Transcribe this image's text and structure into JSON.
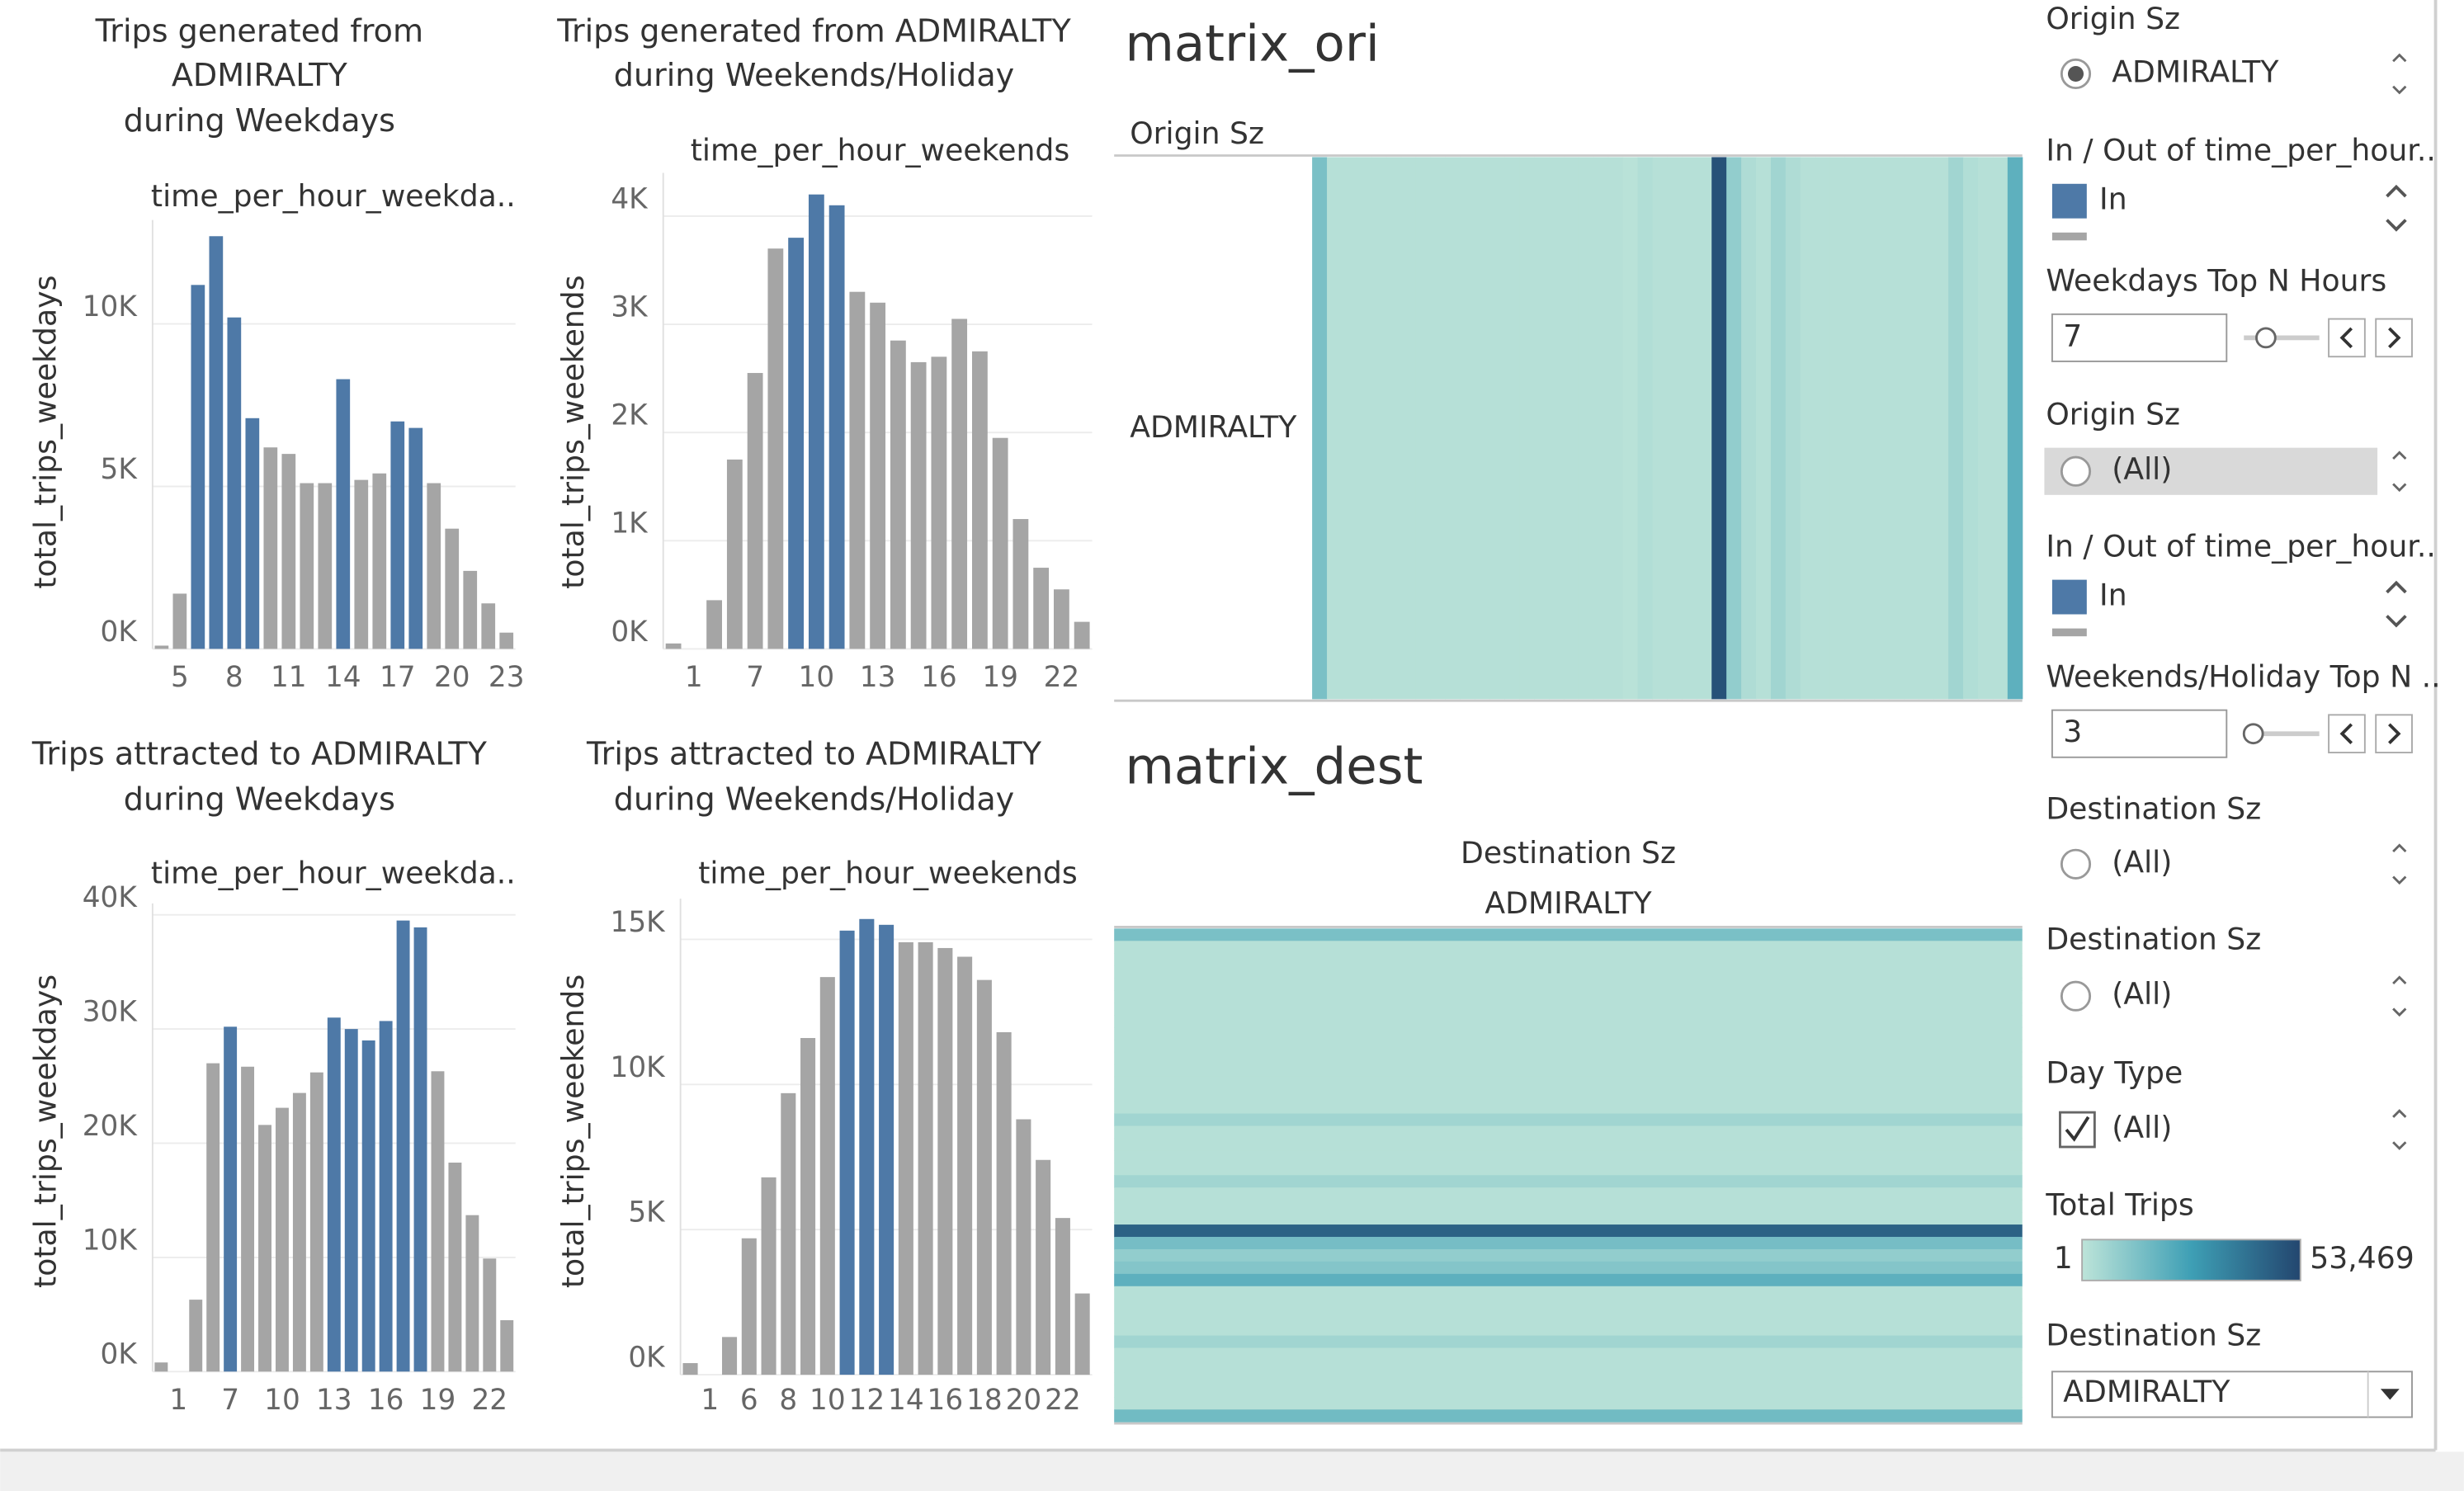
{
  "chart_data": [
    {
      "type": "bar",
      "title": [
        "Trips generated from",
        "ADMIRALTY",
        "during Weekdays"
      ],
      "subtitle": "time_per_hour_weekda..",
      "y_label": "total_trips_weekdays",
      "categories": [
        null,
        "5",
        null,
        null,
        "8",
        null,
        null,
        "11",
        null,
        null,
        "14",
        null,
        null,
        "17",
        null,
        null,
        "20",
        null,
        null,
        "23"
      ],
      "values": [
        100,
        1700,
        11200,
        12700,
        10200,
        7100,
        6200,
        6000,
        5100,
        5100,
        8300,
        5200,
        5400,
        7000,
        6800,
        5100,
        3700,
        2400,
        1400,
        500
      ],
      "colors": [
        "#a5a5a5",
        "#a5a5a5",
        "#4e79a7",
        "#4e79a7",
        "#4e79a7",
        "#4e79a7",
        "#a5a5a5",
        "#a5a5a5",
        "#a5a5a5",
        "#a5a5a5",
        "#4e79a7",
        "#a5a5a5",
        "#a5a5a5",
        "#4e79a7",
        "#4e79a7",
        "#a5a5a5",
        "#a5a5a5",
        "#a5a5a5",
        "#a5a5a5",
        "#a5a5a5"
      ],
      "ylim": [
        0,
        13200
      ],
      "yticks": [
        {
          "value": 0,
          "label": "0K"
        },
        {
          "value": 5000,
          "label": "5K"
        },
        {
          "value": 10000,
          "label": "10K"
        }
      ],
      "grid": true
    },
    {
      "type": "bar",
      "title": [
        "Trips generated from ADMIRALTY",
        "during Weekends/Holiday"
      ],
      "subtitle": "time_per_hour_weekends",
      "y_label": "total_trips_weekends",
      "categories": [
        null,
        "1",
        null,
        null,
        "7",
        null,
        null,
        "10",
        null,
        null,
        "13",
        null,
        null,
        "16",
        null,
        null,
        "19",
        null,
        null,
        "22",
        null
      ],
      "values": [
        50,
        0,
        450,
        1750,
        2550,
        3700,
        3800,
        4200,
        4100,
        3300,
        3200,
        2850,
        2650,
        2700,
        3050,
        2750,
        1950,
        1200,
        750,
        550,
        250
      ],
      "colors": [
        "#a5a5a5",
        "#a5a5a5",
        "#a5a5a5",
        "#a5a5a5",
        "#a5a5a5",
        "#a5a5a5",
        "#4e79a7",
        "#4e79a7",
        "#4e79a7",
        "#a5a5a5",
        "#a5a5a5",
        "#a5a5a5",
        "#a5a5a5",
        "#a5a5a5",
        "#a5a5a5",
        "#a5a5a5",
        "#a5a5a5",
        "#a5a5a5",
        "#a5a5a5",
        "#a5a5a5",
        "#a5a5a5"
      ],
      "ylim": [
        0,
        4400
      ],
      "yticks": [
        {
          "value": 0,
          "label": "0K"
        },
        {
          "value": 1000,
          "label": "1K"
        },
        {
          "value": 2000,
          "label": "2K"
        },
        {
          "value": 3000,
          "label": "3K"
        },
        {
          "value": 4000,
          "label": "4K"
        }
      ],
      "grid": true
    },
    {
      "type": "bar",
      "title": [
        "Trips attracted to ADMIRALTY",
        "during Weekdays"
      ],
      "subtitle": "time_per_hour_weekda..",
      "y_label": "total_trips_weekdays",
      "categories": [
        null,
        "1",
        null,
        null,
        "7",
        null,
        null,
        "10",
        null,
        null,
        "13",
        null,
        null,
        "16",
        null,
        null,
        "19",
        null,
        null,
        "22",
        null
      ],
      "values": [
        800,
        0,
        6300,
        27000,
        30200,
        26700,
        21600,
        23100,
        24400,
        26200,
        31000,
        30000,
        29000,
        30700,
        39500,
        38900,
        26300,
        18300,
        13700,
        9900,
        4500
      ],
      "colors": [
        "#a5a5a5",
        "#a5a5a5",
        "#a5a5a5",
        "#a5a5a5",
        "#4e79a7",
        "#a5a5a5",
        "#a5a5a5",
        "#a5a5a5",
        "#a5a5a5",
        "#a5a5a5",
        "#4e79a7",
        "#4e79a7",
        "#4e79a7",
        "#4e79a7",
        "#4e79a7",
        "#4e79a7",
        "#a5a5a5",
        "#a5a5a5",
        "#a5a5a5",
        "#a5a5a5",
        "#a5a5a5"
      ],
      "ylim": [
        0,
        41000
      ],
      "yticks": [
        {
          "value": 0,
          "label": "0K"
        },
        {
          "value": 10000,
          "label": "10K"
        },
        {
          "value": 20000,
          "label": "20K"
        },
        {
          "value": 30000,
          "label": "30K"
        },
        {
          "value": 40000,
          "label": "40K"
        }
      ],
      "grid": true
    },
    {
      "type": "bar",
      "title": [
        "Trips attracted to ADMIRALTY",
        "during Weekends/Holiday"
      ],
      "subtitle": "time_per_hour_weekends",
      "y_label": "total_trips_weekends",
      "categories": [
        null,
        "1",
        null,
        "6",
        null,
        "8",
        null,
        "10",
        null,
        "12",
        null,
        "14",
        null,
        "16",
        null,
        "18",
        null,
        "20",
        null,
        "22",
        null
      ],
      "values": [
        400,
        0,
        1300,
        4700,
        6800,
        9700,
        11600,
        13700,
        15300,
        15700,
        15500,
        14900,
        14900,
        14700,
        14400,
        13600,
        11800,
        8800,
        7400,
        5400,
        2800
      ],
      "colors": [
        "#a5a5a5",
        "#a5a5a5",
        "#a5a5a5",
        "#a5a5a5",
        "#a5a5a5",
        "#a5a5a5",
        "#a5a5a5",
        "#a5a5a5",
        "#4e79a7",
        "#4e79a7",
        "#4e79a7",
        "#a5a5a5",
        "#a5a5a5",
        "#a5a5a5",
        "#a5a5a5",
        "#a5a5a5",
        "#a5a5a5",
        "#a5a5a5",
        "#a5a5a5",
        "#a5a5a5",
        "#a5a5a5"
      ],
      "ylim": [
        0,
        16400
      ],
      "yticks": [
        {
          "value": 0,
          "label": "0K"
        },
        {
          "value": 5000,
          "label": "5K"
        },
        {
          "value": 10000,
          "label": "10K"
        },
        {
          "value": 15000,
          "label": "15K"
        }
      ],
      "grid": true
    },
    {
      "type": "heatmap",
      "title": "matrix_ori",
      "header": "Origin Sz",
      "label": "ADMIRALTY",
      "orientation": "columns",
      "values": [
        14000,
        1500,
        1500,
        1500,
        1500,
        1500,
        1500,
        1500,
        1500,
        1500,
        1500,
        1500,
        1500,
        1500,
        1500,
        1500,
        1500,
        1500,
        1500,
        1500,
        1500,
        800,
        2500,
        1500,
        1500,
        1500,
        1500,
        50000,
        9000,
        3000,
        1500,
        6000,
        3000,
        1500,
        1500,
        1500,
        1500,
        1500,
        1500,
        1500,
        1500,
        1500,
        1500,
        6000,
        2500,
        1500,
        1500,
        20000
      ]
    },
    {
      "type": "heatmap",
      "title": "matrix_dest",
      "header": "Destination Sz",
      "label": "ADMIRALTY",
      "orientation": "rows",
      "values": [
        14000,
        1500,
        1500,
        1500,
        1500,
        1500,
        1500,
        1500,
        1500,
        1500,
        1500,
        1500,
        1500,
        1500,
        1500,
        6000,
        1500,
        1500,
        1500,
        1500,
        6000,
        1500,
        1500,
        1500,
        45000,
        15000,
        9000,
        12000,
        20000,
        1500,
        1500,
        1500,
        1500,
        6000,
        1500,
        1500,
        1500,
        1500,
        1500,
        16000
      ]
    }
  ],
  "controls": [
    {
      "kind": "radio",
      "title": "Origin Sz",
      "option": "ADMIRALTY",
      "selected": true
    },
    {
      "kind": "legend",
      "title": "In / Out of time_per_hour..",
      "item": "In",
      "color": "#4e79a7"
    },
    {
      "kind": "topn",
      "title": "Weekdays Top N Hours",
      "value": "7"
    },
    {
      "kind": "radio",
      "title": "Origin Sz",
      "option": "(All)",
      "selected": false,
      "highlighted": true
    },
    {
      "kind": "legend",
      "title": "In / Out of time_per_hour..",
      "item": "In",
      "color": "#4e79a7"
    },
    {
      "kind": "topn",
      "title": "Weekends/Holiday Top N ..",
      "value": "3"
    },
    {
      "kind": "radio",
      "title": "Destination Sz",
      "option": "(All)",
      "selected": false
    },
    {
      "kind": "radio",
      "title": "Destination Sz",
      "option": "(All)",
      "selected": false
    },
    {
      "kind": "checkbox",
      "title": "Day Type",
      "option": "(All)",
      "checked": true
    },
    {
      "kind": "colorscale",
      "title": "Total Trips",
      "min": 1,
      "max": {
        "value": 53469,
        "label": "53,469"
      },
      "colors": [
        "#bde4d9",
        "#3e9fb5",
        "#23466f"
      ]
    },
    {
      "kind": "dropdown",
      "title": "Destination Sz",
      "value": "ADMIRALTY"
    }
  ]
}
